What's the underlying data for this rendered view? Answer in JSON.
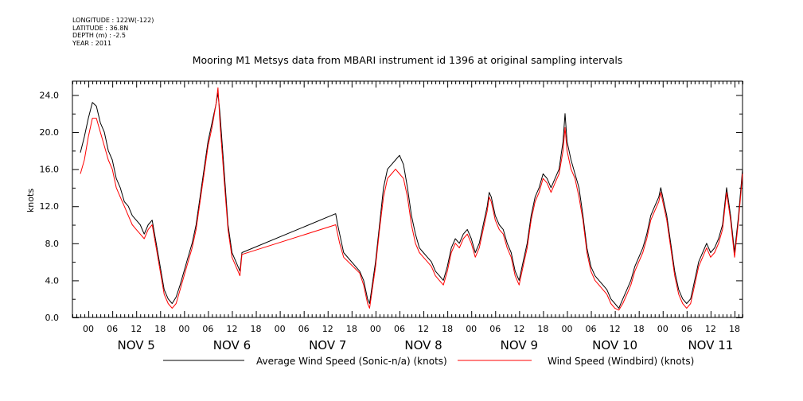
{
  "header": {
    "meta_lines": [
      "LONGITUDE : 122W(-122)",
      "LATITUDE : 36.8N",
      "DEPTH (m) : -2.5",
      "YEAR : 2011"
    ]
  },
  "chart_data": {
    "type": "line",
    "title": "Mooring M1 Metsys data from MBARI instrument id 1396 at original sampling intervals",
    "xlabel": "",
    "ylabel": "knots",
    "ylim": [
      0,
      25.5
    ],
    "y_ticks": [
      "0.0",
      "4.0",
      "8.0",
      "12.0",
      "16.0",
      "20.0",
      "24.0"
    ],
    "x_hour_ticks": [
      "00",
      "06",
      "12",
      "18",
      "00",
      "06",
      "12",
      "18",
      "00",
      "06",
      "12",
      "18",
      "00",
      "06",
      "12",
      "18",
      "00",
      "06",
      "12",
      "18",
      "00",
      "06",
      "12",
      "18",
      "00",
      "06",
      "12",
      "18"
    ],
    "x_day_labels": [
      "NOV  5",
      "NOV  6",
      "NOV  7",
      "NOV  8",
      "NOV  9",
      "NOV 10",
      "NOV 11"
    ],
    "xlim_hours": [
      -4,
      164
    ],
    "grid": false,
    "legend_position": "bottom",
    "series": [
      {
        "name": "Average Wind Speed (Sonic-n/a) (knots)",
        "color": "#000000",
        "points": [
          [
            -2,
            17.8
          ],
          [
            -1,
            19.5
          ],
          [
            0,
            21.5
          ],
          [
            1,
            23.2
          ],
          [
            2,
            22.8
          ],
          [
            3,
            21
          ],
          [
            4,
            20
          ],
          [
            5,
            18
          ],
          [
            6,
            17
          ],
          [
            7,
            15
          ],
          [
            8,
            14
          ],
          [
            9,
            12.5
          ],
          [
            10,
            12
          ],
          [
            11,
            11
          ],
          [
            12,
            10.5
          ],
          [
            13,
            10
          ],
          [
            14,
            9
          ],
          [
            15,
            10
          ],
          [
            16,
            10.5
          ],
          [
            17,
            8
          ],
          [
            18,
            5.5
          ],
          [
            19,
            3
          ],
          [
            20,
            2
          ],
          [
            21,
            1.5
          ],
          [
            22,
            2.2
          ],
          [
            23,
            3.5
          ],
          [
            24,
            5
          ],
          [
            25,
            6.5
          ],
          [
            26,
            8
          ],
          [
            27,
            10
          ],
          [
            28,
            13
          ],
          [
            29,
            16
          ],
          [
            30,
            19
          ],
          [
            31,
            21
          ],
          [
            32,
            23
          ],
          [
            32.5,
            24.2
          ],
          [
            33,
            22
          ],
          [
            34,
            16
          ],
          [
            35,
            10
          ],
          [
            36,
            7
          ],
          [
            37,
            6
          ],
          [
            38,
            5
          ],
          [
            38.5,
            7
          ],
          [
            62,
            11.2
          ],
          [
            62.5,
            10
          ],
          [
            63,
            9
          ],
          [
            64,
            7
          ],
          [
            68,
            5
          ],
          [
            69,
            4
          ],
          [
            70,
            2
          ],
          [
            70.5,
            1.5
          ],
          [
            71,
            3
          ],
          [
            72,
            6
          ],
          [
            73,
            10
          ],
          [
            74,
            14
          ],
          [
            75,
            16
          ],
          [
            76,
            16.5
          ],
          [
            77,
            17
          ],
          [
            78,
            17.5
          ],
          [
            79,
            16.5
          ],
          [
            80,
            14
          ],
          [
            81,
            11
          ],
          [
            82,
            9
          ],
          [
            83,
            7.5
          ],
          [
            84,
            7
          ],
          [
            85,
            6.5
          ],
          [
            86,
            6
          ],
          [
            87,
            5
          ],
          [
            88,
            4.5
          ],
          [
            89,
            4
          ],
          [
            90,
            5.5
          ],
          [
            91,
            7.5
          ],
          [
            92,
            8.5
          ],
          [
            93,
            8
          ],
          [
            94,
            9
          ],
          [
            95,
            9.5
          ],
          [
            96,
            8.5
          ],
          [
            97,
            7
          ],
          [
            98,
            8
          ],
          [
            99,
            10
          ],
          [
            100,
            12
          ],
          [
            100.5,
            13.5
          ],
          [
            101,
            13
          ],
          [
            102,
            11
          ],
          [
            103,
            10
          ],
          [
            104,
            9.5
          ],
          [
            105,
            8
          ],
          [
            106,
            7
          ],
          [
            107,
            5
          ],
          [
            108,
            4
          ],
          [
            109,
            6
          ],
          [
            110,
            8
          ],
          [
            111,
            11
          ],
          [
            112,
            13
          ],
          [
            113,
            14
          ],
          [
            114,
            15.5
          ],
          [
            115,
            15
          ],
          [
            116,
            14
          ],
          [
            117,
            15
          ],
          [
            118,
            16
          ],
          [
            119,
            19
          ],
          [
            119.5,
            22
          ],
          [
            120,
            19
          ],
          [
            121,
            17
          ],
          [
            122,
            15.5
          ],
          [
            123,
            14
          ],
          [
            124,
            11
          ],
          [
            125,
            7.5
          ],
          [
            126,
            5.5
          ],
          [
            127,
            4.5
          ],
          [
            128,
            4
          ],
          [
            129,
            3.5
          ],
          [
            130,
            3
          ],
          [
            131,
            2
          ],
          [
            132,
            1.5
          ],
          [
            133,
            1
          ],
          [
            134,
            2
          ],
          [
            135,
            3
          ],
          [
            136,
            4
          ],
          [
            137,
            5.5
          ],
          [
            138,
            6.5
          ],
          [
            139,
            7.5
          ],
          [
            140,
            9
          ],
          [
            141,
            11
          ],
          [
            142,
            12
          ],
          [
            143,
            13
          ],
          [
            143.5,
            14
          ],
          [
            144,
            13
          ],
          [
            145,
            11
          ],
          [
            146,
            8
          ],
          [
            147,
            5
          ],
          [
            148,
            3
          ],
          [
            149,
            2
          ],
          [
            150,
            1.5
          ],
          [
            151,
            2
          ],
          [
            152,
            4
          ],
          [
            153,
            6
          ],
          [
            154,
            7
          ],
          [
            155,
            8
          ],
          [
            156,
            7
          ],
          [
            157,
            7.5
          ],
          [
            158,
            8.5
          ],
          [
            159,
            10
          ],
          [
            160,
            14
          ],
          [
            161,
            11
          ],
          [
            162,
            7
          ],
          [
            163,
            11
          ],
          [
            164,
            16
          ]
        ]
      },
      {
        "name": "Wind Speed (Windbird) (knots)",
        "color": "#ff0000",
        "points": [
          [
            -2,
            15.5
          ],
          [
            -1,
            17
          ],
          [
            0,
            19.5
          ],
          [
            1,
            21.5
          ],
          [
            2,
            21.5
          ],
          [
            3,
            20
          ],
          [
            4,
            18.5
          ],
          [
            5,
            17
          ],
          [
            6,
            16
          ],
          [
            7,
            14
          ],
          [
            8,
            13
          ],
          [
            9,
            12
          ],
          [
            10,
            11
          ],
          [
            11,
            10
          ],
          [
            12,
            9.5
          ],
          [
            13,
            9
          ],
          [
            14,
            8.5
          ],
          [
            15,
            9.5
          ],
          [
            16,
            10
          ],
          [
            17,
            7.5
          ],
          [
            18,
            5
          ],
          [
            19,
            2.5
          ],
          [
            20,
            1.5
          ],
          [
            21,
            1
          ],
          [
            22,
            1.5
          ],
          [
            23,
            3
          ],
          [
            24,
            4.5
          ],
          [
            25,
            6
          ],
          [
            26,
            7.5
          ],
          [
            27,
            9.5
          ],
          [
            28,
            12.5
          ],
          [
            29,
            15.5
          ],
          [
            30,
            18.5
          ],
          [
            31,
            20.5
          ],
          [
            32,
            23
          ],
          [
            32.5,
            24.8
          ],
          [
            33,
            21
          ],
          [
            34,
            15
          ],
          [
            35,
            9.5
          ],
          [
            36,
            6.5
          ],
          [
            37,
            5.5
          ],
          [
            38,
            4.5
          ],
          [
            38.5,
            6.8
          ],
          [
            62,
            10
          ],
          [
            62.5,
            9
          ],
          [
            63,
            8
          ],
          [
            64,
            6.5
          ],
          [
            68,
            4.8
          ],
          [
            69,
            3.5
          ],
          [
            70,
            1.5
          ],
          [
            70.5,
            1
          ],
          [
            71,
            2.5
          ],
          [
            72,
            5.5
          ],
          [
            73,
            9.5
          ],
          [
            74,
            13
          ],
          [
            75,
            15
          ],
          [
            76,
            15.5
          ],
          [
            77,
            16
          ],
          [
            78,
            15.5
          ],
          [
            79,
            15
          ],
          [
            80,
            13
          ],
          [
            81,
            10
          ],
          [
            82,
            8
          ],
          [
            83,
            7
          ],
          [
            84,
            6.5
          ],
          [
            85,
            6
          ],
          [
            86,
            5.5
          ],
          [
            87,
            4.5
          ],
          [
            88,
            4
          ],
          [
            89,
            3.5
          ],
          [
            90,
            5
          ],
          [
            91,
            7
          ],
          [
            92,
            8
          ],
          [
            93,
            7.5
          ],
          [
            94,
            8.5
          ],
          [
            95,
            9
          ],
          [
            96,
            8
          ],
          [
            97,
            6.5
          ],
          [
            98,
            7.5
          ],
          [
            99,
            9.5
          ],
          [
            100,
            11.5
          ],
          [
            100.5,
            13
          ],
          [
            101,
            12.5
          ],
          [
            102,
            10.5
          ],
          [
            103,
            9.5
          ],
          [
            104,
            9
          ],
          [
            105,
            7.5
          ],
          [
            106,
            6.5
          ],
          [
            107,
            4.5
          ],
          [
            108,
            3.5
          ],
          [
            109,
            5.5
          ],
          [
            110,
            7.5
          ],
          [
            111,
            10.5
          ],
          [
            112,
            12.5
          ],
          [
            113,
            13.5
          ],
          [
            114,
            15
          ],
          [
            115,
            14.5
          ],
          [
            116,
            13.5
          ],
          [
            117,
            14.5
          ],
          [
            118,
            15.5
          ],
          [
            119,
            18
          ],
          [
            119.5,
            20.5
          ],
          [
            120,
            18
          ],
          [
            121,
            16
          ],
          [
            122,
            15
          ],
          [
            123,
            13
          ],
          [
            124,
            10.5
          ],
          [
            125,
            7
          ],
          [
            126,
            5
          ],
          [
            127,
            4
          ],
          [
            128,
            3.5
          ],
          [
            129,
            3
          ],
          [
            130,
            2.5
          ],
          [
            131,
            1.5
          ],
          [
            132,
            1
          ],
          [
            133,
            0.8
          ],
          [
            134,
            1.5
          ],
          [
            135,
            2.5
          ],
          [
            136,
            3.5
          ],
          [
            137,
            5
          ],
          [
            138,
            6
          ],
          [
            139,
            7
          ],
          [
            140,
            8.5
          ],
          [
            141,
            10.5
          ],
          [
            142,
            11.5
          ],
          [
            143,
            12.5
          ],
          [
            143.5,
            13.5
          ],
          [
            144,
            12.5
          ],
          [
            145,
            10.5
          ],
          [
            146,
            7.5
          ],
          [
            147,
            4.5
          ],
          [
            148,
            2.5
          ],
          [
            149,
            1.5
          ],
          [
            150,
            1
          ],
          [
            151,
            1.5
          ],
          [
            152,
            3.5
          ],
          [
            153,
            5.5
          ],
          [
            154,
            6.5
          ],
          [
            155,
            7.5
          ],
          [
            156,
            6.5
          ],
          [
            157,
            7
          ],
          [
            158,
            8
          ],
          [
            159,
            9.5
          ],
          [
            160,
            13.5
          ],
          [
            161,
            10.5
          ],
          [
            162,
            6.5
          ],
          [
            163,
            10.5
          ],
          [
            164,
            15.5
          ]
        ]
      }
    ]
  }
}
